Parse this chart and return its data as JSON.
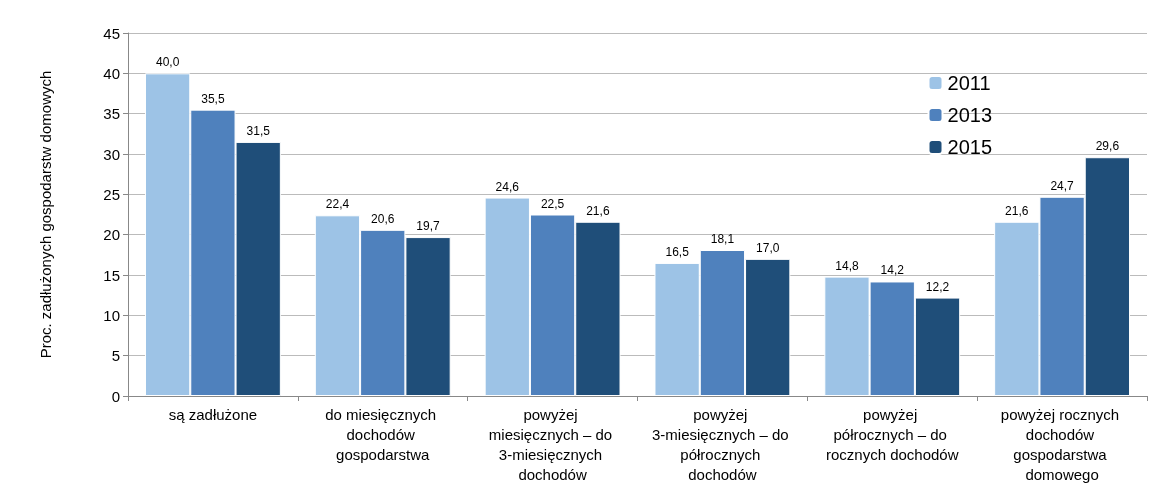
{
  "chart_data": {
    "type": "bar",
    "ylabel": "Proc. zadłużonych gospodarstw domowych",
    "categories": [
      "są zadłużone",
      "do miesięcznych dochodów gospodarstwa",
      "powyżej miesięcznych – do 3-miesięcznych dochodów",
      "powyżej 3-miesięcznych – do półrocznych dochodów",
      "powyżej półrocznych – do rocznych dochodów",
      "powyżej rocznych dochodów gospodarstwa domowego"
    ],
    "series": [
      {
        "name": "2011",
        "color": "#9dc3e6",
        "values": [
          40.0,
          22.4,
          24.6,
          16.5,
          14.8,
          21.6
        ],
        "value_labels": [
          "40,0",
          "22,4",
          "24,6",
          "16,5",
          "14,8",
          "21,6"
        ]
      },
      {
        "name": "2013",
        "color": "#4f81bd",
        "values": [
          35.5,
          20.6,
          22.5,
          18.1,
          14.2,
          24.7
        ],
        "value_labels": [
          "35,5",
          "20,6",
          "22,5",
          "18,1",
          "14,2",
          "24,7"
        ]
      },
      {
        "name": "2015",
        "color": "#1f4e79",
        "values": [
          31.5,
          19.7,
          21.6,
          17.0,
          12.2,
          29.6
        ],
        "value_labels": [
          "31,5",
          "19,7",
          "21,6",
          "17,0",
          "12,2",
          "29,6"
        ]
      }
    ],
    "ylim": [
      0,
      45
    ],
    "yticks": [
      0,
      5,
      10,
      15,
      20,
      25,
      30,
      35,
      40,
      45
    ],
    "grid": "y",
    "legend": "top right"
  }
}
